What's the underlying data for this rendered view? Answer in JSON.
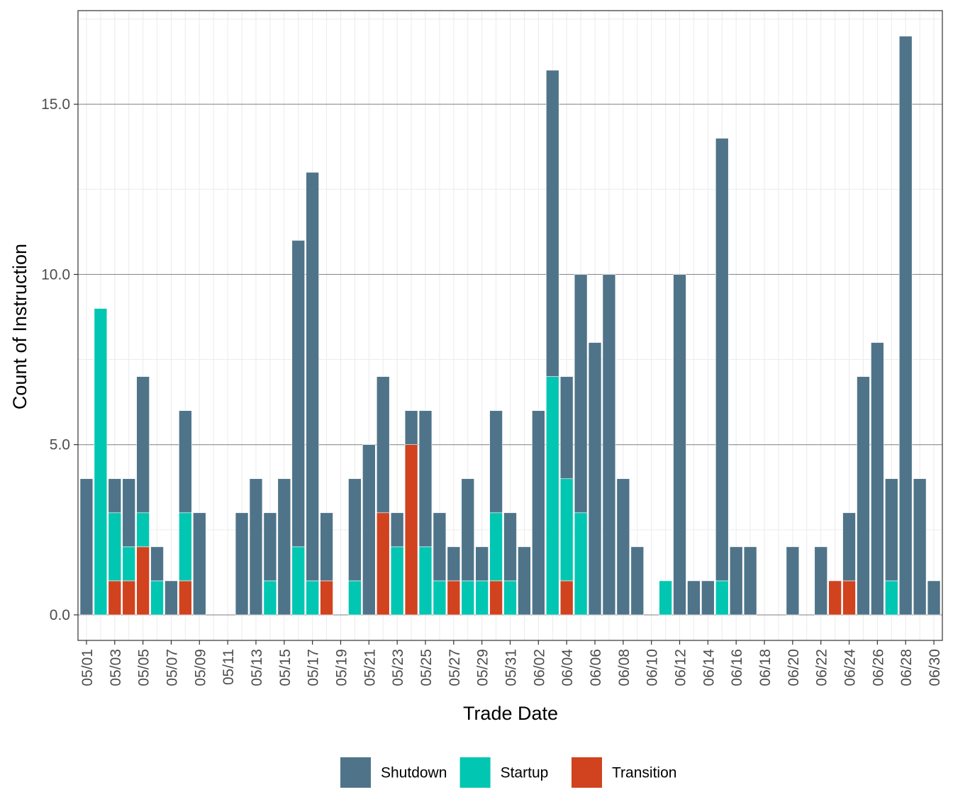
{
  "chart_data": {
    "type": "bar",
    "stacked": true,
    "xlabel": "Trade Date",
    "ylabel": "Count of Instruction",
    "ylim": [
      -0.75,
      17.75
    ],
    "yticks": [
      0,
      5,
      10,
      15
    ],
    "ytick_labels": [
      "0.0",
      "5.0",
      "10.0",
      "15.0"
    ],
    "x_tick_labels": [
      "05/01",
      "05/03",
      "05/05",
      "05/07",
      "05/09",
      "05/11",
      "05/13",
      "05/15",
      "05/17",
      "05/19",
      "05/21",
      "05/23",
      "05/25",
      "05/27",
      "05/29",
      "05/31",
      "06/02",
      "06/04",
      "06/06",
      "06/08",
      "06/10",
      "06/12",
      "06/14",
      "06/16",
      "06/18",
      "06/20",
      "06/22",
      "06/24",
      "06/26",
      "06/28",
      "06/30"
    ],
    "categories": [
      "05/01",
      "05/02",
      "05/03",
      "05/04",
      "05/05",
      "05/06",
      "05/07",
      "05/08",
      "05/09",
      "05/10",
      "05/11",
      "05/12",
      "05/13",
      "05/14",
      "05/15",
      "05/16",
      "05/17",
      "05/18",
      "05/19",
      "05/20",
      "05/21",
      "05/22",
      "05/23",
      "05/24",
      "05/25",
      "05/26",
      "05/27",
      "05/28",
      "05/29",
      "05/30",
      "05/31",
      "06/01",
      "06/02",
      "06/03",
      "06/04",
      "06/05",
      "06/06",
      "06/07",
      "06/08",
      "06/09",
      "06/10",
      "06/11",
      "06/12",
      "06/13",
      "06/14",
      "06/15",
      "06/16",
      "06/17",
      "06/18",
      "06/19",
      "06/20",
      "06/21",
      "06/22",
      "06/23",
      "06/24",
      "06/25",
      "06/26",
      "06/27",
      "06/28",
      "06/29",
      "06/30"
    ],
    "series": [
      {
        "name": "Transition",
        "color": "#d1421e",
        "values": [
          0,
          0,
          1,
          1,
          2,
          0,
          0,
          1,
          0,
          0,
          0,
          0,
          0,
          0,
          0,
          0,
          0,
          1,
          0,
          0,
          0,
          3,
          0,
          5,
          0,
          0,
          1,
          0,
          0,
          1,
          0,
          0,
          0,
          0,
          1,
          0,
          0,
          0,
          0,
          0,
          0,
          0,
          0,
          0,
          0,
          0,
          0,
          0,
          0,
          0,
          0,
          0,
          0,
          1,
          1,
          0,
          0,
          0,
          0,
          0,
          0
        ]
      },
      {
        "name": "Startup",
        "color": "#00c6b2",
        "values": [
          0,
          9,
          2,
          1,
          1,
          1,
          0,
          2,
          0,
          0,
          0,
          0,
          0,
          1,
          0,
          2,
          1,
          0,
          0,
          1,
          0,
          0,
          2,
          0,
          2,
          1,
          0,
          1,
          1,
          2,
          1,
          0,
          0,
          7,
          3,
          3,
          0,
          0,
          0,
          0,
          0,
          1,
          0,
          0,
          0,
          1,
          0,
          0,
          0,
          0,
          0,
          0,
          0,
          0,
          0,
          0,
          0,
          1,
          0,
          0,
          0
        ]
      },
      {
        "name": "Shutdown",
        "color": "#4f7489",
        "values": [
          4,
          0,
          1,
          2,
          4,
          1,
          1,
          3,
          3,
          0,
          0,
          3,
          4,
          2,
          4,
          9,
          12,
          2,
          0,
          3,
          5,
          4,
          1,
          1,
          4,
          2,
          1,
          3,
          1,
          3,
          2,
          2,
          6,
          9,
          3,
          7,
          8,
          10,
          4,
          2,
          0,
          0,
          10,
          1,
          1,
          13,
          2,
          2,
          0,
          0,
          2,
          0,
          2,
          0,
          2,
          7,
          8,
          3,
          17,
          4,
          1
        ]
      }
    ],
    "legend": {
      "position": "bottom",
      "order": [
        "Shutdown",
        "Startup",
        "Transition"
      ]
    },
    "grid": true
  }
}
